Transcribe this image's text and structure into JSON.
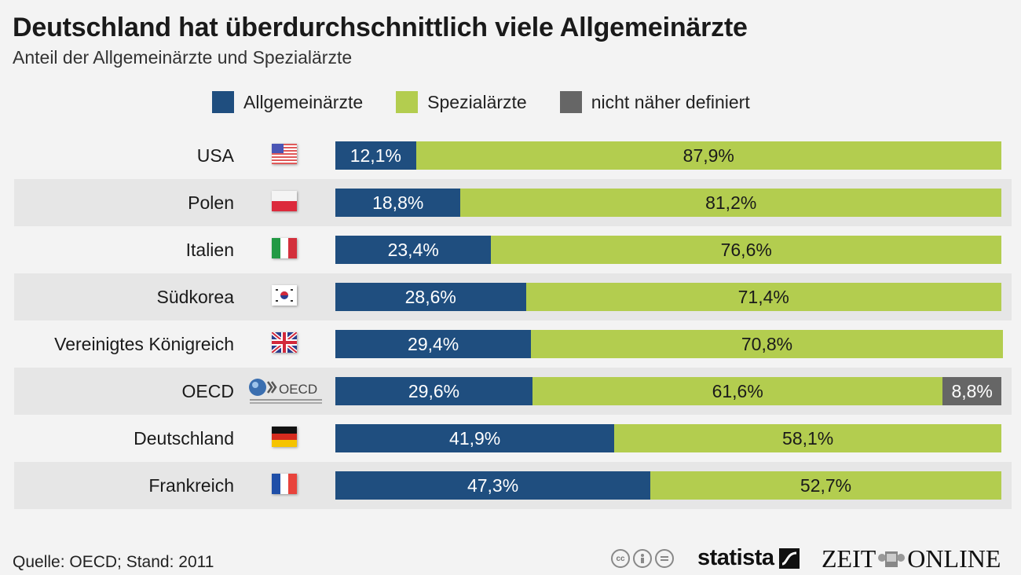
{
  "header": {
    "title": "Deutschland hat überdurchschnittlich viele Allgemeinärzte",
    "subtitle": "Anteil der Allgemeinärzte und Spezialärzte"
  },
  "legend": [
    {
      "label": "Allgemeinärzte",
      "color": "#1f4e7f"
    },
    {
      "label": "Spezialärzte",
      "color": "#b3cd4f"
    },
    {
      "label": "nicht näher definiert",
      "color": "#666666"
    }
  ],
  "chart_data": {
    "type": "bar",
    "orientation": "horizontal",
    "stacked": true,
    "normalized": true,
    "title": "Deutschland hat überdurchschnittlich viele Allgemeinärzte",
    "subtitle": "Anteil der Allgemeinärzte und Spezialärzte",
    "xlabel": "",
    "ylabel": "",
    "xlim": [
      0,
      100
    ],
    "unit": "%",
    "legend_position": "top",
    "grid": false,
    "categories": [
      "USA",
      "Polen",
      "Italien",
      "Südkorea",
      "Vereinigtes Königreich",
      "OECD",
      "Deutschland",
      "Frankreich"
    ],
    "icons": [
      "flag-usa",
      "flag-poland",
      "flag-italy",
      "flag-south-korea",
      "flag-uk",
      "oecd-logo",
      "flag-germany",
      "flag-france"
    ],
    "series": [
      {
        "name": "Allgemeinärzte",
        "color": "#1f4e7f",
        "values": [
          12.1,
          18.8,
          23.4,
          28.6,
          29.4,
          29.6,
          41.9,
          47.3
        ],
        "labels": [
          "12,1%",
          "18,8%",
          "23,4%",
          "28,6%",
          "29,4%",
          "29,6%",
          "41,9%",
          "47,3%"
        ]
      },
      {
        "name": "Spezialärzte",
        "color": "#b3cd4f",
        "values": [
          87.9,
          81.2,
          76.6,
          71.4,
          70.8,
          61.6,
          58.1,
          52.7
        ],
        "labels": [
          "87,9%",
          "81,2%",
          "76,6%",
          "71,4%",
          "70,8%",
          "61,6%",
          "58,1%",
          "52,7%"
        ]
      },
      {
        "name": "nicht näher definiert",
        "color": "#666666",
        "values": [
          0,
          0,
          0,
          0,
          0,
          8.8,
          0,
          0
        ],
        "labels": [
          "",
          "",
          "",
          "",
          "",
          "8,8%",
          "",
          ""
        ]
      }
    ]
  },
  "footer": {
    "source": "Quelle: OECD; Stand: 2011",
    "license_icons": [
      "cc-icon",
      "by-icon",
      "nd-icon"
    ],
    "brand_statista": "statista",
    "brand_zeit_left": "ZEIT",
    "brand_zeit_right": "ONLINE",
    "oecd_logo_text": "OECD"
  }
}
